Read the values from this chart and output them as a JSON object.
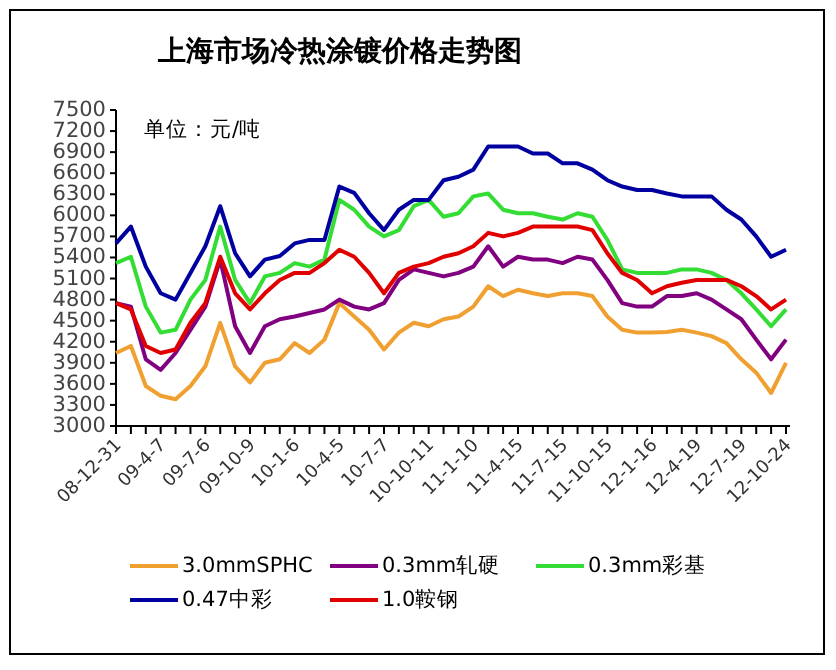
{
  "chart_data": {
    "type": "line",
    "title": "上海市场冷热涂镀价格走势图",
    "annotations": [
      "单位：元/吨"
    ],
    "categories": [
      "08-12-31",
      null,
      null,
      "09-4-7",
      null,
      null,
      "09-7-6",
      null,
      null,
      "09-10-9",
      null,
      null,
      "10-1-6",
      null,
      null,
      "10-4-5",
      null,
      null,
      "10-7-7",
      null,
      null,
      "10-10-11",
      null,
      null,
      "11-1-10",
      null,
      null,
      "11-4-15",
      null,
      null,
      "11-7-15",
      null,
      null,
      "11-10-15",
      null,
      null,
      "12-1-16",
      null,
      null,
      "12-4-19",
      null,
      null,
      "12-7-19",
      null,
      null,
      "12-10-24"
    ],
    "ylim": [
      3000,
      7500
    ],
    "yticks": [
      3000,
      3300,
      3600,
      3900,
      4200,
      4500,
      4800,
      5100,
      5400,
      5700,
      6000,
      6300,
      6600,
      6900,
      7200,
      7500
    ],
    "grid": false,
    "legend": "bottom",
    "marker": "none",
    "line_style": "solid",
    "series": [
      {
        "name": "3.0mmSPHC",
        "color": "#f0a030",
        "values": [
          4040,
          4140,
          3570,
          3430,
          3380,
          3570,
          3850,
          4470,
          3850,
          3620,
          3900,
          3950,
          4180,
          4040,
          4230,
          4750,
          4560,
          4370,
          4090,
          4330,
          4470,
          4420,
          4520,
          4560,
          4700,
          4990,
          4850,
          4940,
          4890,
          4850,
          4890,
          4890,
          4850,
          4560,
          4370,
          4330,
          4330,
          4340,
          4370,
          4330,
          4280,
          4180,
          3950,
          3760,
          3470,
          3900
        ]
      },
      {
        "name": "0.3mm轧硬",
        "color": "#800080",
        "values": [
          4750,
          4700,
          3950,
          3800,
          4040,
          4370,
          4700,
          5370,
          4420,
          4040,
          4420,
          4520,
          4560,
          4610,
          4660,
          4800,
          4700,
          4660,
          4750,
          5080,
          5230,
          5180,
          5130,
          5180,
          5270,
          5560,
          5270,
          5410,
          5370,
          5370,
          5320,
          5410,
          5370,
          5080,
          4750,
          4700,
          4700,
          4850,
          4850,
          4890,
          4800,
          4660,
          4520,
          4230,
          3950,
          4230
        ]
      },
      {
        "name": "0.3mm彩基",
        "color": "#33dd33",
        "values": [
          5320,
          5410,
          4700,
          4330,
          4370,
          4800,
          5080,
          5840,
          5080,
          4750,
          5130,
          5180,
          5320,
          5270,
          5370,
          6220,
          6080,
          5840,
          5700,
          5790,
          6130,
          6220,
          5980,
          6030,
          6270,
          6310,
          6080,
          6030,
          6030,
          5980,
          5940,
          6030,
          5980,
          5650,
          5230,
          5180,
          5180,
          5180,
          5230,
          5230,
          5180,
          5080,
          4890,
          4660,
          4420,
          4660
        ]
      },
      {
        "name": "0.47中彩",
        "color": "#0000a0",
        "values": [
          5600,
          5840,
          5270,
          4890,
          4800,
          5180,
          5560,
          6130,
          5460,
          5130,
          5370,
          5420,
          5600,
          5650,
          5650,
          6410,
          6320,
          6030,
          5790,
          6080,
          6220,
          6220,
          6500,
          6550,
          6650,
          6980,
          6980,
          6980,
          6880,
          6880,
          6740,
          6740,
          6650,
          6500,
          6410,
          6360,
          6360,
          6310,
          6270,
          6270,
          6270,
          6080,
          5940,
          5700,
          5410,
          5510
        ]
      },
      {
        "name": "1.0鞍钢",
        "color": "#e00000",
        "values": [
          4750,
          4660,
          4140,
          4040,
          4090,
          4470,
          4750,
          5410,
          4890,
          4660,
          4890,
          5080,
          5180,
          5180,
          5320,
          5510,
          5410,
          5180,
          4890,
          5180,
          5270,
          5320,
          5410,
          5460,
          5560,
          5750,
          5700,
          5750,
          5840,
          5840,
          5840,
          5840,
          5790,
          5460,
          5180,
          5080,
          4890,
          4990,
          5040,
          5080,
          5080,
          5080,
          4990,
          4850,
          4660,
          4800
        ]
      }
    ]
  }
}
